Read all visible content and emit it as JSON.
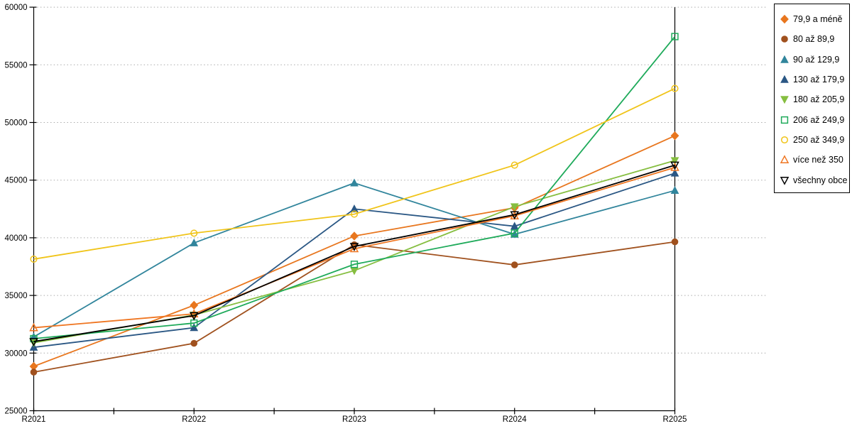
{
  "chart_data": {
    "type": "line",
    "title": "",
    "xlabel": "",
    "ylabel": "",
    "categories": [
      "R2021",
      "R2022",
      "R2023",
      "R2024",
      "R2025"
    ],
    "y_axis": {
      "min": 25000,
      "max": 60000,
      "step": 5000,
      "tick_labels": [
        "25000",
        "30000",
        "35000",
        "40000",
        "45000",
        "50000",
        "55000",
        "60000"
      ]
    },
    "grid": "horizontal-dotted",
    "legend_position": "top-right-outside",
    "series": [
      {
        "name": "79,9 a méně",
        "color": "#E8761E",
        "marker": "diamond",
        "filled": true,
        "values": [
          28850,
          34150,
          40150,
          42600,
          48850
        ]
      },
      {
        "name": "80 až 89,9",
        "color": "#A0511E",
        "marker": "circle",
        "filled": true,
        "values": [
          28350,
          30850,
          39400,
          37650,
          39650
        ]
      },
      {
        "name": "90 až 129,9",
        "color": "#31859C",
        "marker": "triangle-up",
        "filled": true,
        "values": [
          31400,
          39550,
          44750,
          40300,
          44100
        ]
      },
      {
        "name": "130 až 179,9",
        "color": "#2A5784",
        "marker": "triangle-up",
        "filled": true,
        "values": [
          30500,
          32200,
          42500,
          41000,
          45600
        ]
      },
      {
        "name": "180 až 205,9",
        "color": "#86BE40",
        "marker": "triangle-down",
        "filled": true,
        "values": [
          30900,
          33300,
          37150,
          42700,
          46700
        ]
      },
      {
        "name": "206 až 249,9",
        "color": "#1EAA5A",
        "marker": "square",
        "filled": false,
        "values": [
          31250,
          32600,
          37700,
          40400,
          57450
        ]
      },
      {
        "name": "250 až 349,9",
        "color": "#F0C419",
        "marker": "circle",
        "filled": false,
        "values": [
          38150,
          40400,
          42050,
          46300,
          52950
        ]
      },
      {
        "name": "více než 350",
        "color": "#EF7622",
        "marker": "triangle-up",
        "filled": false,
        "values": [
          32200,
          33400,
          39050,
          41900,
          46100
        ]
      },
      {
        "name": "všechny obce",
        "color": "#000000",
        "marker": "triangle-down",
        "filled": false,
        "values": [
          31000,
          33250,
          39250,
          42000,
          46300
        ]
      }
    ]
  },
  "colors": {
    "axis": "#000000",
    "gridline": "#ababab",
    "background": "#ffffff"
  }
}
